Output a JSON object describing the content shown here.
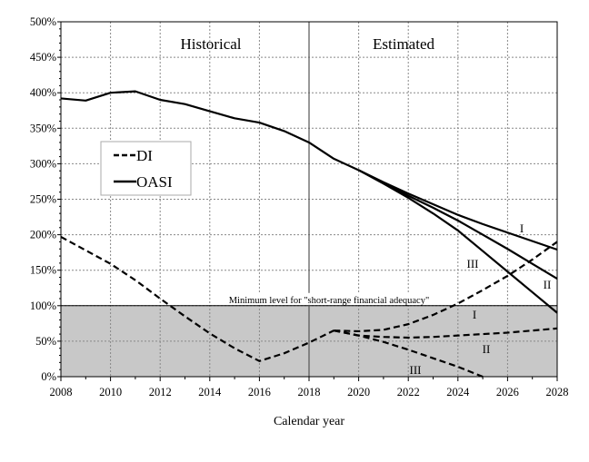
{
  "chart_data": {
    "type": "line",
    "title": "",
    "xlabel": "Calendar year",
    "ylabel": "",
    "xlim": [
      2008,
      2028
    ],
    "ylim": [
      0,
      500
    ],
    "x_ticks": [
      "2008",
      "2010",
      "2012",
      "2014",
      "2016",
      "2018",
      "2020",
      "2022",
      "2024",
      "2026",
      "2028"
    ],
    "y_ticks": [
      "0%",
      "50%",
      "100%",
      "150%",
      "200%",
      "250%",
      "300%",
      "350%",
      "400%",
      "450%",
      "500%"
    ],
    "grid": true,
    "legend_position": "left",
    "legend": [
      {
        "name": "DI",
        "style": "dashed"
      },
      {
        "name": "OASI",
        "style": "solid"
      }
    ],
    "regions": {
      "historical": "Historical",
      "estimated": "Estimated",
      "divider_year": 2018
    },
    "threshold": {
      "value": 100,
      "label": "Minimum level for \"short-range financial adequacy\"",
      "fill": "#c8c8c8"
    },
    "series": [
      {
        "name": "OASI",
        "style": "solid",
        "x": [
          2008,
          2009,
          2010,
          2011,
          2012,
          2013,
          2014,
          2015,
          2016,
          2017,
          2018,
          2019,
          2020
        ],
        "y": [
          392,
          389,
          400,
          402,
          390,
          384,
          374,
          364,
          358,
          346,
          330,
          307,
          291
        ]
      },
      {
        "name": "OASI",
        "label": "I",
        "style": "solid",
        "x": [
          2020,
          2021,
          2022,
          2023,
          2024,
          2025,
          2026,
          2027,
          2028
        ],
        "y": [
          291,
          274,
          258,
          243,
          228,
          215,
          203,
          191,
          179
        ]
      },
      {
        "name": "OASI",
        "label": "II",
        "style": "solid",
        "x": [
          2020,
          2021,
          2022,
          2023,
          2024,
          2025,
          2026,
          2027,
          2028
        ],
        "y": [
          291,
          273,
          255,
          238,
          220,
          200,
          180,
          159,
          138
        ]
      },
      {
        "name": "OASI",
        "label": "III",
        "style": "solid",
        "x": [
          2020,
          2021,
          2022,
          2023,
          2024,
          2025,
          2026,
          2027,
          2028
        ],
        "y": [
          291,
          272,
          252,
          230,
          206,
          177,
          148,
          119,
          90
        ]
      },
      {
        "name": "DI",
        "style": "dashed",
        "x": [
          2008,
          2009,
          2010,
          2011,
          2012,
          2013,
          2014,
          2015,
          2016,
          2017,
          2018,
          2019
        ],
        "y": [
          197,
          178,
          159,
          136,
          110,
          85,
          61,
          40,
          22,
          33,
          48,
          65
        ]
      },
      {
        "name": "DI",
        "label": "I",
        "style": "dashed",
        "x": [
          2019,
          2020,
          2021,
          2022,
          2023,
          2024,
          2025,
          2026,
          2027,
          2028
        ],
        "y": [
          65,
          64,
          66,
          74,
          87,
          103,
          122,
          142,
          165,
          190
        ]
      },
      {
        "name": "DI",
        "label": "II",
        "style": "dashed",
        "x": [
          2019,
          2020,
          2021,
          2022,
          2023,
          2024,
          2025,
          2026,
          2027,
          2028
        ],
        "y": [
          65,
          58,
          56,
          55,
          56,
          58,
          60,
          62,
          65,
          68
        ]
      },
      {
        "name": "DI",
        "label": "III",
        "style": "dashed",
        "x": [
          2019,
          2020,
          2021,
          2022,
          2023,
          2024,
          2025
        ],
        "y": [
          65,
          58,
          49,
          38,
          26,
          14,
          0
        ]
      }
    ]
  }
}
